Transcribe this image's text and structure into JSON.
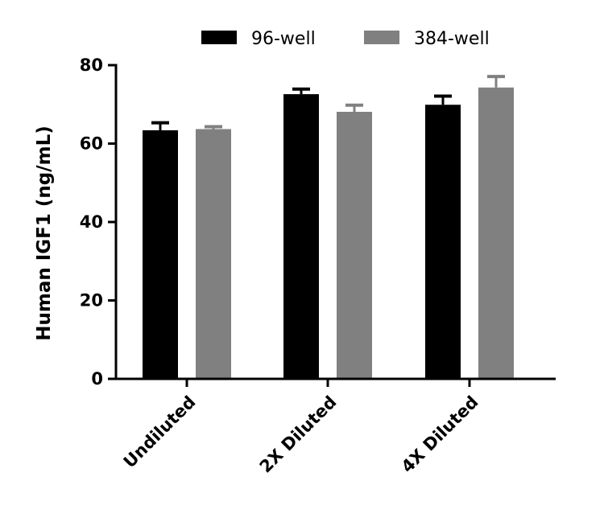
{
  "chart_data": {
    "type": "bar",
    "title": "",
    "xlabel": "",
    "ylabel": "Human IGF1 (ng/mL)",
    "ylim": [
      0,
      80
    ],
    "yticks": [
      "0",
      "20",
      "40",
      "60",
      "80"
    ],
    "categories": [
      "Undiluted",
      "2X Diluted",
      "4X Diluted"
    ],
    "series": [
      {
        "name": "96-well",
        "color": "#000000",
        "values": [
          63.4,
          72.6,
          69.9
        ],
        "error": [
          1.9,
          1.3,
          2.2
        ]
      },
      {
        "name": "384-well",
        "color": "#808080",
        "values": [
          63.7,
          68.1,
          74.3
        ],
        "error": [
          0.6,
          1.7,
          2.8
        ]
      }
    ],
    "grid": false,
    "legend": "top"
  }
}
